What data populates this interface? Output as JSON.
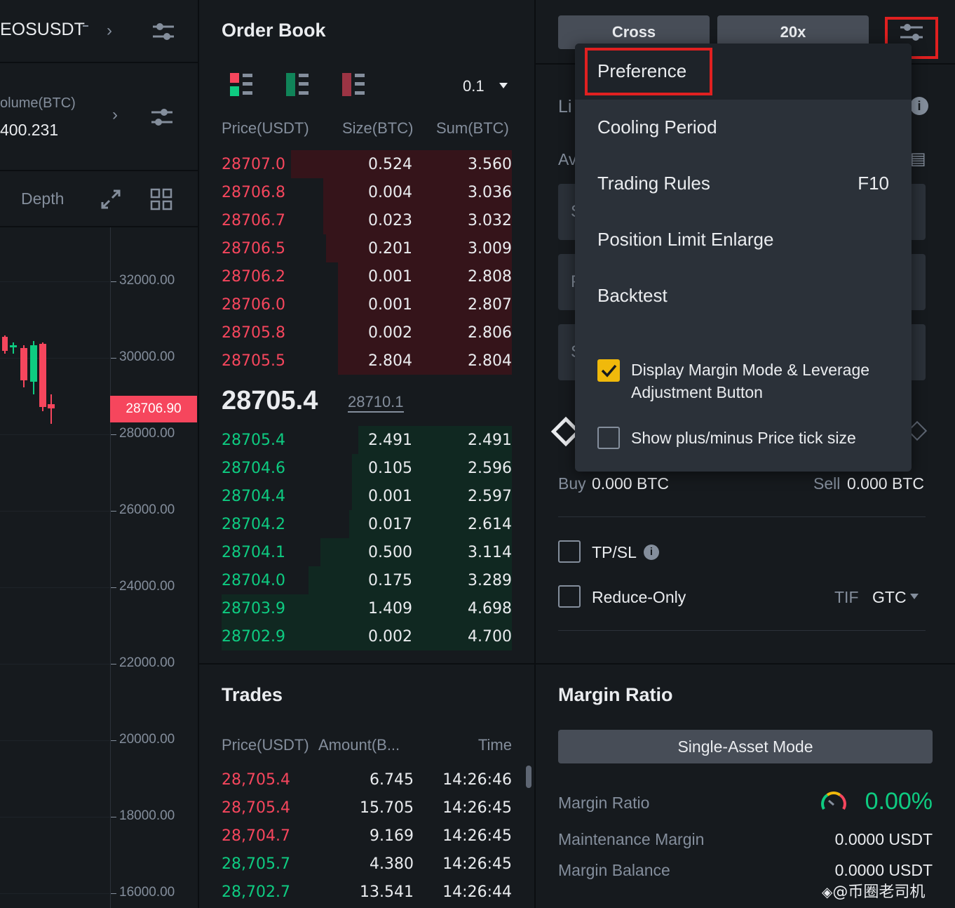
{
  "chart_panel": {
    "symbol": "EOSUSDT",
    "volume_label": "olume(BTC)",
    "volume_value": "400.231",
    "depth_tab": "Depth",
    "current_price": "28706.90",
    "y_ticks": [
      "32000.00",
      "30000.00",
      "28000.00",
      "26000.00",
      "24000.00",
      "22000.00",
      "20000.00",
      "18000.00",
      "16000.00"
    ]
  },
  "order_book": {
    "title": "Order Book",
    "precision": "0.1",
    "headers": [
      "Price(USDT)",
      "Size(BTC)",
      "Sum(BTC)"
    ],
    "asks": [
      {
        "price": "28707.0",
        "size": "0.524",
        "sum": "3.560",
        "depth": 0.76
      },
      {
        "price": "28706.8",
        "size": "0.004",
        "sum": "3.036",
        "depth": 0.65
      },
      {
        "price": "28706.7",
        "size": "0.023",
        "sum": "3.032",
        "depth": 0.65
      },
      {
        "price": "28706.5",
        "size": "0.201",
        "sum": "3.009",
        "depth": 0.64
      },
      {
        "price": "28706.2",
        "size": "0.001",
        "sum": "2.808",
        "depth": 0.6
      },
      {
        "price": "28706.0",
        "size": "0.001",
        "sum": "2.807",
        "depth": 0.6
      },
      {
        "price": "28705.8",
        "size": "0.002",
        "sum": "2.806",
        "depth": 0.6
      },
      {
        "price": "28705.5",
        "size": "2.804",
        "sum": "2.804",
        "depth": 0.6
      }
    ],
    "last_price": "28705.4",
    "mark_price": "28710.1",
    "bids": [
      {
        "price": "28705.4",
        "size": "2.491",
        "sum": "2.491",
        "depth": 0.53
      },
      {
        "price": "28704.6",
        "size": "0.105",
        "sum": "2.596",
        "depth": 0.55
      },
      {
        "price": "28704.4",
        "size": "0.001",
        "sum": "2.597",
        "depth": 0.55
      },
      {
        "price": "28704.2",
        "size": "0.017",
        "sum": "2.614",
        "depth": 0.56
      },
      {
        "price": "28704.1",
        "size": "0.500",
        "sum": "3.114",
        "depth": 0.66
      },
      {
        "price": "28704.0",
        "size": "0.175",
        "sum": "3.289",
        "depth": 0.7
      },
      {
        "price": "28703.9",
        "size": "1.409",
        "sum": "4.698",
        "depth": 1.0
      },
      {
        "price": "28702.9",
        "size": "0.002",
        "sum": "4.700",
        "depth": 1.0
      }
    ]
  },
  "trades": {
    "title": "Trades",
    "headers": [
      "Price(USDT)",
      "Amount(B...",
      "Time"
    ],
    "rows": [
      {
        "price": "28,705.4",
        "amount": "6.745",
        "time": "14:26:46",
        "side": "sell"
      },
      {
        "price": "28,705.4",
        "amount": "15.705",
        "time": "14:26:45",
        "side": "sell"
      },
      {
        "price": "28,704.7",
        "amount": "9.169",
        "time": "14:26:45",
        "side": "sell"
      },
      {
        "price": "28,705.7",
        "amount": "4.380",
        "time": "14:26:45",
        "side": "buy"
      },
      {
        "price": "28,702.7",
        "amount": "13.541",
        "time": "14:26:44",
        "side": "buy"
      }
    ]
  },
  "order_form": {
    "margin_mode": "Cross",
    "leverage": "20x",
    "partial_li": "Li",
    "partial_av": "Av",
    "partial_s1": "S",
    "partial_p": "P",
    "partial_s2": "S",
    "buy_label": "Buy",
    "buy_value": "0.000 BTC",
    "sell_label": "Sell",
    "sell_value": "0.000 BTC",
    "tpsl": "TP/SL",
    "reduce_only": "Reduce-Only",
    "tif_label": "TIF",
    "tif_value": "GTC"
  },
  "menu": {
    "items": [
      "Preference",
      "Cooling Period",
      "Trading Rules",
      "Position Limit Enlarge",
      "Backtest"
    ],
    "trading_rules_shortcut": "F10",
    "option1_line1": "Display Margin Mode & Leverage",
    "option1_line2": "Adjustment Button",
    "option1_checked": true,
    "option2": "Show plus/minus Price tick size",
    "option2_checked": false
  },
  "margin_ratio": {
    "title": "Margin Ratio",
    "mode_button": "Single-Asset Mode",
    "ratio_label": "Margin Ratio",
    "ratio_value": "0.00%",
    "maint_label": "Maintenance Margin",
    "maint_value": "0.0000 USDT",
    "balance_label": "Margin Balance",
    "balance_value": "0.0000 USDT"
  },
  "watermark": "@币圈老司机",
  "colors": {
    "ask": "#f6465d",
    "bid": "#0ecb81",
    "accent": "#f0b90b",
    "highlight": "#e02020"
  }
}
